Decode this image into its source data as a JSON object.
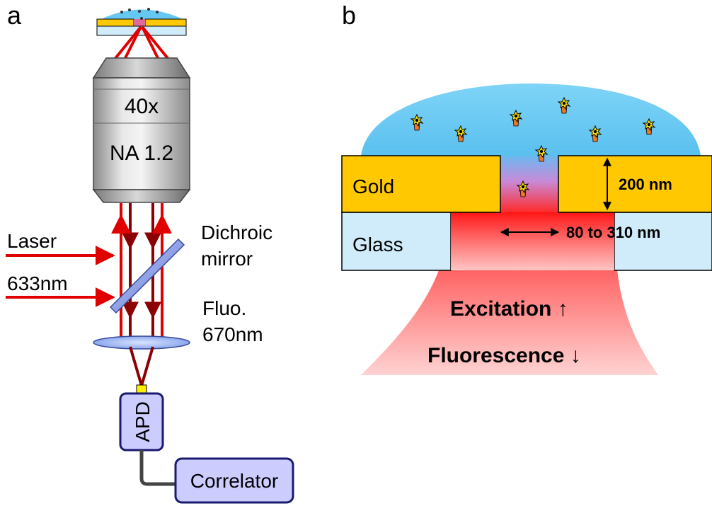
{
  "panel_a": {
    "label": "a",
    "objective_magnification": "40x",
    "objective_na": "NA 1.2",
    "laser_label": "Laser",
    "laser_wavelength": "633nm",
    "dichroic_line1": "Dichroic",
    "dichroic_line2": "mirror",
    "fluo_line1": "Fluo.",
    "fluo_line2": "670nm",
    "detector_label": "APD",
    "correlator_label": "Correlator"
  },
  "panel_b": {
    "label": "b",
    "gold_label": "Gold",
    "glass_label": "Glass",
    "thickness_label": "200 nm",
    "aperture_label": "80 to 310 nm",
    "excitation_label": "Excitation ↑",
    "fluorescence_label": "Fluorescence ↓"
  },
  "colors": {
    "droplet": "#66c8f2",
    "gold": "#ffc800",
    "glass": "#d0ecfa",
    "laser_red": "#e00000",
    "beam_dark": "#8b0000",
    "box_fill": "#ccccff",
    "box_stroke": "#1a1a6e"
  }
}
